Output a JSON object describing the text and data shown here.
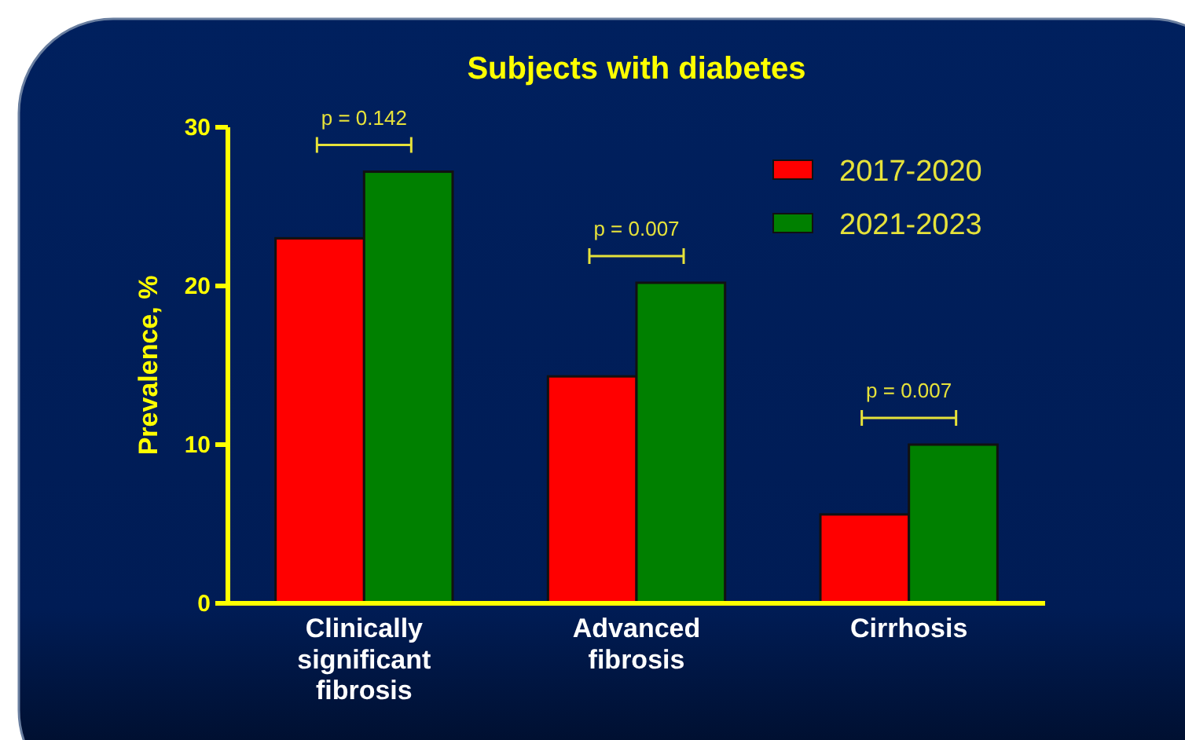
{
  "chart_data": {
    "type": "bar",
    "title": "Subjects with diabetes",
    "ylabel": "Prevalence, %",
    "categories": [
      "Clinically significant fibrosis",
      "Advanced fibrosis",
      "Cirrhosis"
    ],
    "series": [
      {
        "name": "2017-2020",
        "color": "#ff0000",
        "values": [
          23.0,
          14.3,
          5.6
        ]
      },
      {
        "name": "2021-2023",
        "color": "#008000",
        "values": [
          27.2,
          20.2,
          10.0
        ]
      }
    ],
    "ylim": [
      0,
      30
    ],
    "yticks": [
      0,
      10,
      20,
      30
    ],
    "grid": false,
    "legend": "top right",
    "annotations": [
      "p = 0.142",
      "p = 0.007",
      "p = 0.007"
    ]
  }
}
